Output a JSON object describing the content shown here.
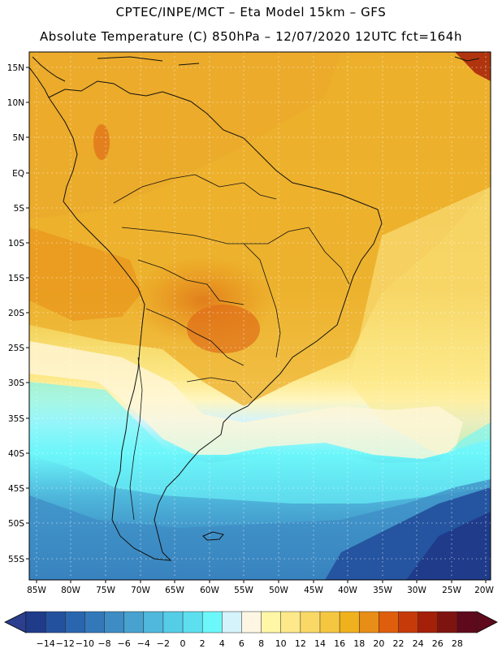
{
  "title": {
    "line1": "CPTEC/INPE/MCT –  Eta Model 15km – GFS",
    "line2": "Absolute Temperature (C) 850hPa – 12/07/2020 12UTC fct=164h"
  },
  "map": {
    "lat_labels": [
      "15N",
      "10N",
      "5N",
      "EQ",
      "5S",
      "10S",
      "15S",
      "20S",
      "25S",
      "30S",
      "35S",
      "40S",
      "45S",
      "50S",
      "55S"
    ],
    "lon_labels": [
      "85W",
      "80W",
      "75W",
      "70W",
      "65W",
      "60W",
      "55W",
      "50W",
      "45W",
      "40W",
      "35W",
      "30W",
      "25W",
      "20W"
    ]
  },
  "legend": {
    "labels": [
      "−14",
      "−12",
      "−10",
      "−8",
      "−6",
      "−4",
      "−2",
      "0",
      "2",
      "4",
      "6",
      "8",
      "10",
      "12",
      "14",
      "16",
      "18",
      "20",
      "22",
      "24",
      "26",
      "28"
    ],
    "left_arrow_color": "#2b3f8e",
    "right_arrow_color": "#5e0a1c",
    "colors": [
      "#1f3b8a",
      "#24519e",
      "#2a66ae",
      "#3379b9",
      "#3d8cc4",
      "#47a2cf",
      "#4fb8dc",
      "#55cde6",
      "#5ddff0",
      "#6cf7fa",
      "#d4f3fb",
      "#fdf6e3",
      "#fff6a6",
      "#fde98a",
      "#f9d866",
      "#f5c741",
      "#efb11d",
      "#e88d16",
      "#df5e0d",
      "#c63a0a",
      "#a42009",
      "#7e1410",
      "#5e0a1c"
    ]
  }
}
